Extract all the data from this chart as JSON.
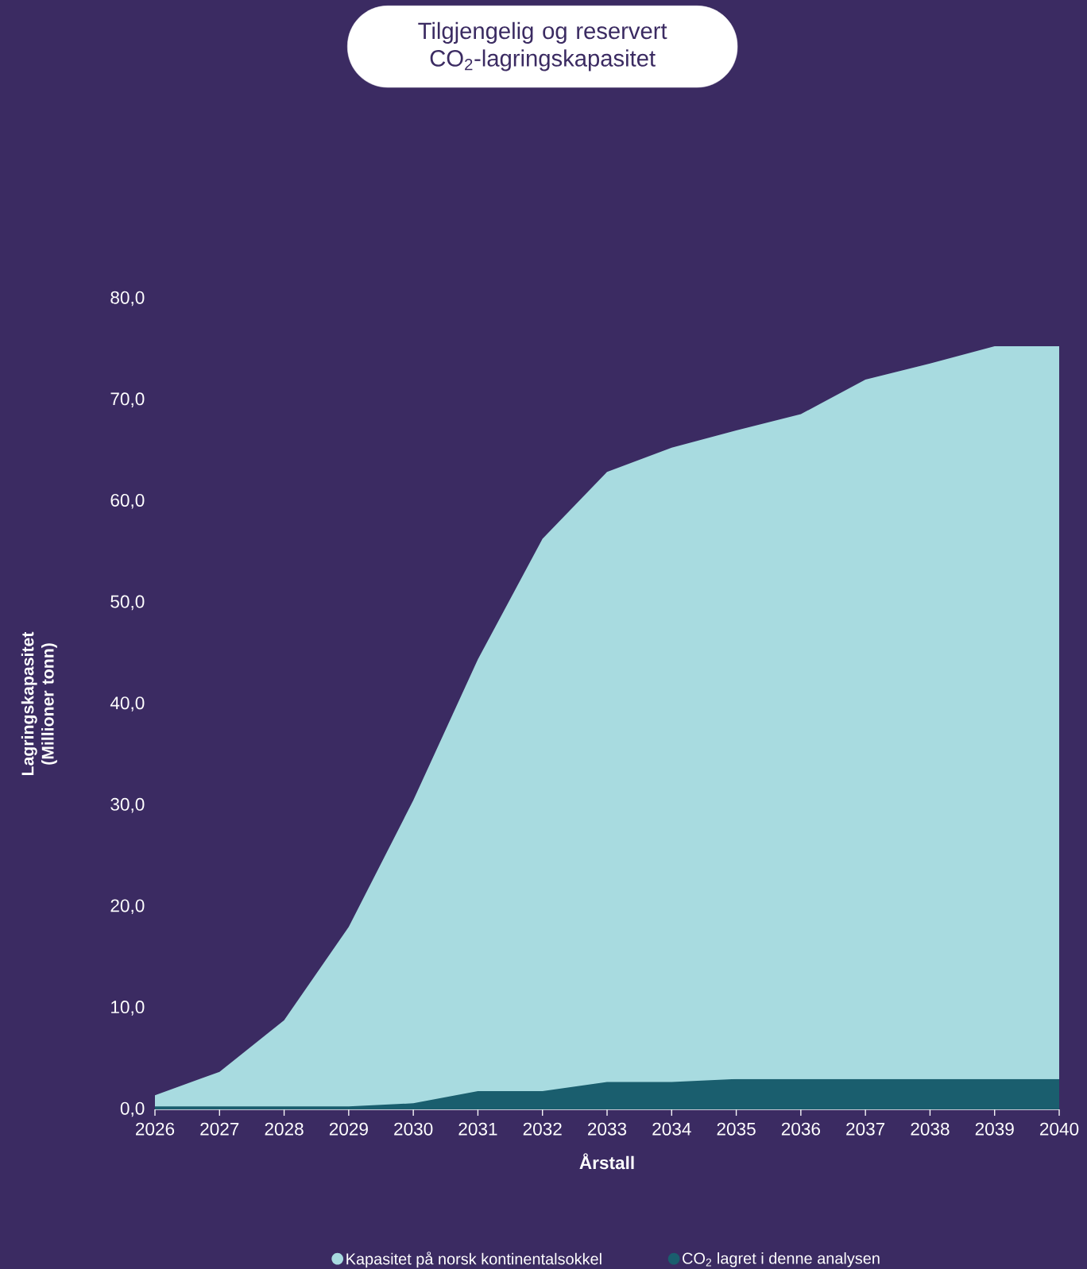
{
  "chart_data": {
    "type": "area",
    "title": "Tilgjengelig og reservert CO$_{2}$-lagringskapasitet",
    "xlabel": "Årstall",
    "ylabel": "Lagringskapasitet (Millioner tonn)",
    "x": [
      2026,
      2027,
      2028,
      2029,
      2030,
      2031,
      2032,
      2033,
      2034,
      2035,
      2036,
      2037,
      2038,
      2039,
      2040
    ],
    "series": [
      {
        "name": "Kapasitet på norsk kontinentalsokkel",
        "color": "#a8dbe0",
        "values": [
          1.4,
          3.7,
          8.8,
          18.0,
          30.5,
          44.4,
          56.3,
          62.9,
          65.3,
          67.0,
          68.6,
          72.0,
          73.6,
          75.3,
          75.3
        ]
      },
      {
        "name": "CO$_{2}$ lagret i denne analysen",
        "color": "#1a5e6e",
        "values": [
          0.3,
          0.3,
          0.3,
          0.3,
          0.6,
          1.8,
          1.8,
          2.7,
          2.7,
          3.0,
          3.0,
          3.0,
          3.0,
          3.0,
          3.0
        ]
      }
    ],
    "xlim": [
      2026,
      2040
    ],
    "ylim": [
      0,
      80
    ],
    "xticks": [
      2026,
      2027,
      2028,
      2029,
      2030,
      2031,
      2032,
      2033,
      2034,
      2035,
      2036,
      2037,
      2038,
      2039,
      2040
    ],
    "yticks": [
      {
        "value": 0,
        "label": "0,0"
      },
      {
        "value": 10,
        "label": "10,0"
      },
      {
        "value": 20,
        "label": "20,0"
      },
      {
        "value": 30,
        "label": "30,0"
      },
      {
        "value": 40,
        "label": "40,0"
      },
      {
        "value": 50,
        "label": "50,0"
      },
      {
        "value": 60,
        "label": "60,0"
      },
      {
        "value": 70,
        "label": "70,0"
      },
      {
        "value": 80,
        "label": "80,0"
      }
    ],
    "legend": "bottom"
  }
}
